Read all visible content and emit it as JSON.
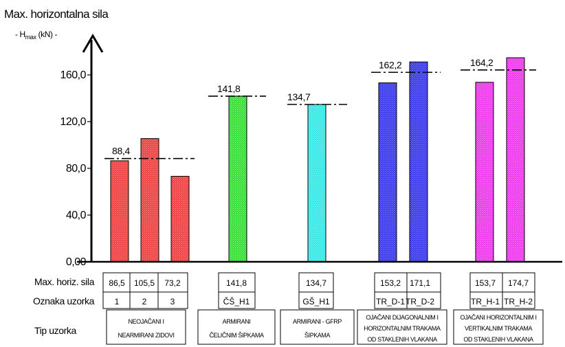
{
  "chart_data": {
    "type": "bar",
    "title": "Max. horizontalna sila",
    "ylabel_parts": {
      "pre": "- H",
      "sub": "max",
      "post": " (kN) -"
    },
    "ylim": [
      0,
      180
    ],
    "yticks": [
      0,
      40,
      80,
      120,
      160
    ],
    "ytick_labels": [
      "0,00",
      "40,0",
      "80,0",
      "120,0",
      "160,0"
    ],
    "grid": false,
    "legend": "none",
    "groups": [
      {
        "type_label": [
          "NEOJAČANI I",
          "NEARMIRANI ZIDOVI"
        ],
        "color": "#ee3b3b",
        "mean": 88.4,
        "mean_label": "88,4",
        "bars": [
          {
            "id": "1",
            "value": 86.5,
            "value_label": "86,5"
          },
          {
            "id": "2",
            "value": 105.5,
            "value_label": "105,5"
          },
          {
            "id": "3",
            "value": 73.2,
            "value_label": "73,2"
          }
        ]
      },
      {
        "type_label": [
          "ARMIRANI",
          "ČELIČNIM ŠIPKAMA"
        ],
        "color": "#33dd33",
        "mean": 141.8,
        "mean_label": "141,8",
        "bars": [
          {
            "id": "ČŠ_H1",
            "value": 141.8,
            "value_label": "141,8"
          }
        ]
      },
      {
        "type_label": [
          "ARMIRANI - GFRP",
          "ŠIPKAMA"
        ],
        "color": "#33e6e6",
        "mean": 134.7,
        "mean_label": "134,7",
        "bars": [
          {
            "id": "GŠ_H1",
            "value": 134.7,
            "value_label": "134,7"
          }
        ]
      },
      {
        "type_label": [
          "OJAČANI DIJAGONALNIM I",
          "HORIZONTALNIM TRAKAMA",
          "OD STAKLENIH VLAKANA"
        ],
        "color": "#3333ee",
        "mean": 162.2,
        "mean_label": "162,2",
        "bars": [
          {
            "id": "TR_D-1",
            "value": 153.2,
            "value_label": "153,2"
          },
          {
            "id": "TR_D-2",
            "value": 171.1,
            "value_label": "171,1"
          }
        ]
      },
      {
        "type_label": [
          "OJAČANI HORIZONTALNIM I",
          "VERTIKALNIM TRAKAMA",
          "OD STAKLENIH VLAKANA"
        ],
        "color": "#ee33ee",
        "mean": 164.2,
        "mean_label": "164,2",
        "bars": [
          {
            "id": "TR_H-1",
            "value": 153.7,
            "value_label": "153,7"
          },
          {
            "id": "TR_H-2",
            "value": 174.7,
            "value_label": "174,7"
          }
        ]
      }
    ],
    "table_row_labels": [
      "Max. horiz. sila",
      "Oznaka uzorka",
      "Tip uzorka"
    ]
  }
}
